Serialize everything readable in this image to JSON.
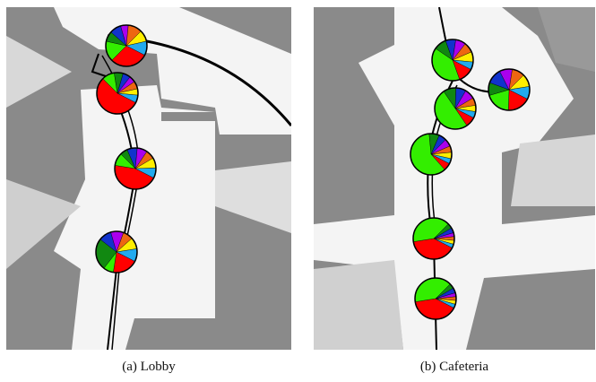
{
  "panels": [
    {
      "caption": "(a) Lobby",
      "pies": [
        [
          30,
          16,
          8,
          9,
          6,
          11,
          9,
          11
        ],
        [
          55,
          10,
          7,
          6,
          5,
          6,
          5,
          6
        ],
        [
          45,
          10,
          6,
          8,
          8,
          7,
          8,
          8
        ],
        [
          20,
          8,
          25,
          10,
          10,
          8,
          9,
          10
        ]
      ]
    },
    {
      "caption": "(b) Cafeteria",
      "pies": [
        [
          12,
          40,
          10,
          8,
          8,
          8,
          8,
          6
        ],
        [
          18,
          20,
          10,
          12,
          10,
          10,
          10,
          10
        ],
        [
          8,
          50,
          10,
          8,
          8,
          6,
          5,
          5
        ],
        [
          6,
          60,
          8,
          6,
          6,
          5,
          5,
          4
        ],
        [
          40,
          40,
          4,
          4,
          3,
          3,
          3,
          3
        ],
        [
          40,
          40,
          4,
          4,
          3,
          3,
          3,
          3
        ]
      ]
    }
  ],
  "colors": [
    "#ff0000",
    "#33ee00",
    "#118811",
    "#1133cc",
    "#aa00ee",
    "#ee6611",
    "#ffee00",
    "#22aaee"
  ]
}
